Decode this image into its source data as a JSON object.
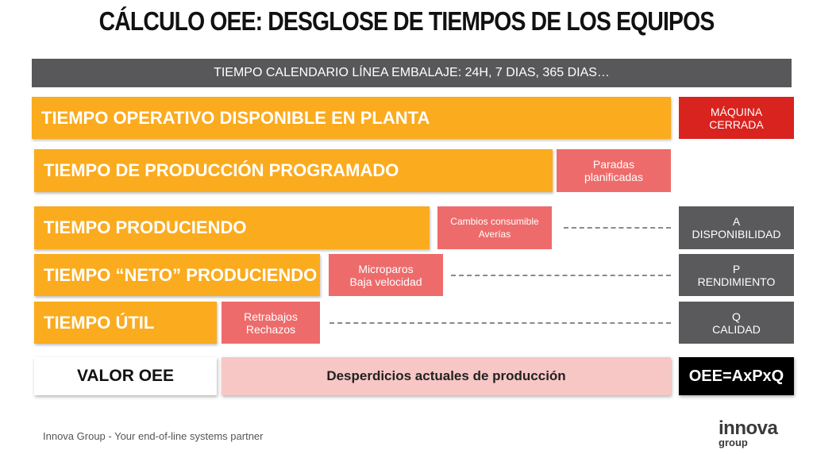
{
  "title": "CÁLCULO OEE: DESGLOSE DE TIEMPOS DE LOS EQUIPOS",
  "calendar": "TIEMPO CALENDARIO LÍNEA EMBALAJE: 24H, 7 DIAS, 365 DIAS…",
  "rows": [
    {
      "label": "TIEMPO OPERATIVO DISPONIBLE EN PLANTA",
      "side": [
        "MÁQUINA",
        "CERRADA"
      ]
    },
    {
      "label": "TIEMPO DE PRODUCCIÓN PROGRAMADO",
      "loss": [
        "Paradas",
        "planificadas"
      ]
    },
    {
      "label": "TIEMPO PRODUCIENDO",
      "loss": [
        "Cambios consumible",
        "Averías"
      ],
      "side": [
        "A",
        "DISPONIBILIDAD"
      ]
    },
    {
      "label": "TIEMPO “NETO” PRODUCIENDO",
      "loss": [
        "Microparos",
        "Baja velocidad"
      ],
      "side": [
        "P",
        "RENDIMIENTO"
      ]
    },
    {
      "label": "TIEMPO ÚTIL",
      "loss": [
        "Retrabajos",
        "Rechazos"
      ],
      "side": [
        "Q",
        "CALIDAD"
      ]
    }
  ],
  "result": {
    "label": "VALOR OEE",
    "waste": "Desperdicios actuales de producción",
    "formula": "OEE=AxPxQ"
  },
  "footer": "Innova Group - Your end-of-line systems partner",
  "logo": [
    "innova",
    "group"
  ]
}
